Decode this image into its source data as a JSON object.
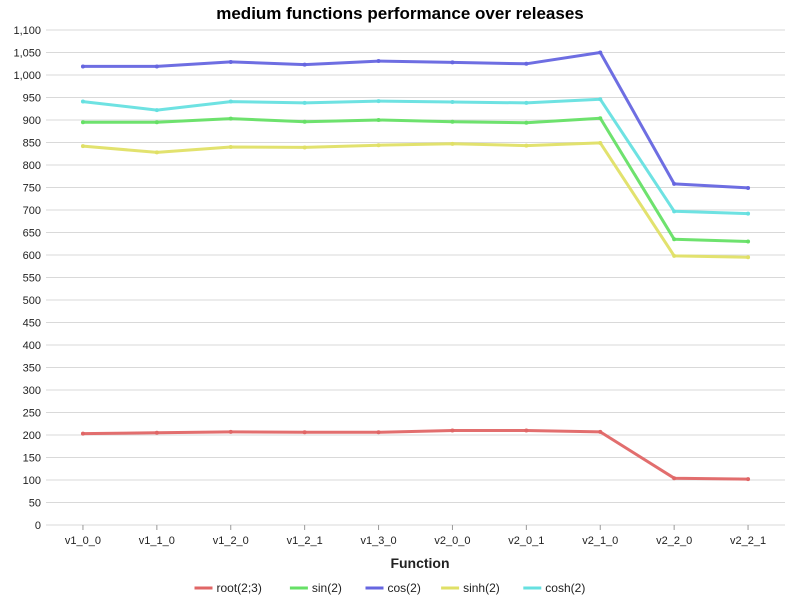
{
  "chart_data": {
    "type": "line",
    "title": "medium functions performance over releases",
    "xlabel": "Function",
    "ylabel": "",
    "categories": [
      "v1_0_0",
      "v1_1_0",
      "v1_2_0",
      "v1_2_1",
      "v1_3_0",
      "v2_0_0",
      "v2_0_1",
      "v2_1_0",
      "v2_2_0",
      "v2_2_1"
    ],
    "ylim": [
      0,
      1100
    ],
    "y_ticks": [
      "0",
      "50",
      "100",
      "150",
      "200",
      "250",
      "300",
      "350",
      "400",
      "450",
      "500",
      "550",
      "600",
      "650",
      "700",
      "750",
      "800",
      "850",
      "900",
      "950",
      "1,000",
      "1,050",
      "1,100"
    ],
    "grid": true,
    "legend_position": "bottom",
    "series": [
      {
        "name": "root(2;3)",
        "color": "#e06666",
        "values": [
          203,
          205,
          207,
          206,
          206,
          210,
          210,
          207,
          104,
          102
        ]
      },
      {
        "name": "sin(2)",
        "color": "#66e066",
        "values": [
          895,
          895,
          903,
          896,
          900,
          896,
          894,
          904,
          635,
          630
        ]
      },
      {
        "name": "cos(2)",
        "color": "#6666e0",
        "values": [
          1019,
          1019,
          1029,
          1023,
          1031,
          1028,
          1025,
          1050,
          758,
          749
        ]
      },
      {
        "name": "sinh(2)",
        "color": "#e0e066",
        "values": [
          842,
          828,
          840,
          839,
          844,
          847,
          843,
          849,
          598,
          595
        ]
      },
      {
        "name": "cosh(2)",
        "color": "#66e0e0",
        "values": [
          941,
          922,
          941,
          938,
          942,
          940,
          938,
          946,
          697,
          692
        ]
      }
    ]
  }
}
